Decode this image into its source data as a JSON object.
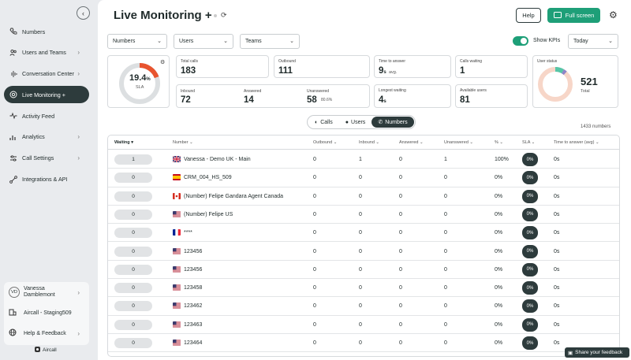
{
  "sidebar": {
    "items": [
      {
        "label": "Numbers",
        "icon": "phone-icon",
        "chevron": false,
        "active": false
      },
      {
        "label": "Users and Teams",
        "icon": "users-icon",
        "chevron": true,
        "active": false
      },
      {
        "label": "Conversation Center",
        "icon": "waveform-icon",
        "chevron": true,
        "active": false
      },
      {
        "label": "Live Monitoring +",
        "icon": "live-icon",
        "chevron": false,
        "active": true
      },
      {
        "label": "Activity Feed",
        "icon": "activity-icon",
        "chevron": false,
        "active": false
      },
      {
        "label": "Analytics",
        "icon": "chart-icon",
        "chevron": true,
        "active": false
      },
      {
        "label": "Call Settings",
        "icon": "sliders-icon",
        "chevron": true,
        "active": false
      },
      {
        "label": "Integrations & API",
        "icon": "integrations-icon",
        "chevron": false,
        "active": false
      }
    ],
    "user": {
      "initials": "VD",
      "name_line1": "Vanessa",
      "name_line2": "Damblemont"
    },
    "company": "Aircall - Staging509",
    "help": "Help & Feedback",
    "footer": "Aircall"
  },
  "header": {
    "title": "Live Monitoring +",
    "help_label": "Help",
    "fullscreen_label": "Full screen"
  },
  "filters": {
    "numbers": "Numbers",
    "users": "Users",
    "teams": "Teams",
    "show_kpis": "Show KPIs",
    "period": "Today"
  },
  "kpis": {
    "sla": {
      "value": "19.4",
      "unit": "%",
      "label": "SLA",
      "fraction": 0.194
    },
    "total_calls": {
      "label": "Total calls",
      "value": "183"
    },
    "outbound": {
      "label": "Outbound",
      "value": "111"
    },
    "time_to_answer": {
      "label": "Time to answer",
      "value": "9",
      "unit": "s",
      "suffix": "avg."
    },
    "calls_waiting": {
      "label": "Calls waiting",
      "value": "1"
    },
    "inbound": {
      "label": "Inbound",
      "value": "72"
    },
    "answered": {
      "label": "Answered",
      "value": "14"
    },
    "unanswered": {
      "label": "Unanswered",
      "value": "58",
      "pct": "80.6%"
    },
    "longest_waiting": {
      "label": "Longest waiting",
      "value": "4",
      "unit": "s"
    },
    "available_users": {
      "label": "Available users",
      "value": "81"
    },
    "user_status": {
      "label": "User status",
      "total": "521",
      "total_label": "Total"
    }
  },
  "tabs": [
    "Calls",
    "Users",
    "Numbers"
  ],
  "count_label": "1433 numbers",
  "table": {
    "headers": [
      "Waiting",
      "Number",
      "Outbound",
      "Inbound",
      "Answered",
      "Unanswered",
      "%",
      "SLA",
      "Time to answer (avg)"
    ],
    "rows": [
      {
        "waiting": "1",
        "flag": "uk",
        "number": "Vanessa - Demo UK - Main",
        "outbound": "0",
        "inbound": "1",
        "answered": "0",
        "unanswered": "1",
        "pct": "100%",
        "sla": "0%",
        "tta": "0s"
      },
      {
        "waiting": "0",
        "flag": "es",
        "number": "CRM_004_HS_509",
        "outbound": "0",
        "inbound": "0",
        "answered": "0",
        "unanswered": "0",
        "pct": "0%",
        "sla": "0%",
        "tta": "0s"
      },
      {
        "waiting": "0",
        "flag": "ca",
        "number": "(Number) Felipe Gandara Agent Canada",
        "outbound": "0",
        "inbound": "0",
        "answered": "0",
        "unanswered": "0",
        "pct": "0%",
        "sla": "0%",
        "tta": "0s"
      },
      {
        "waiting": "0",
        "flag": "us",
        "number": "(Number) Felipe US",
        "outbound": "0",
        "inbound": "0",
        "answered": "0",
        "unanswered": "0",
        "pct": "0%",
        "sla": "0%",
        "tta": "0s"
      },
      {
        "waiting": "0",
        "flag": "fr",
        "number": "****",
        "outbound": "0",
        "inbound": "0",
        "answered": "0",
        "unanswered": "0",
        "pct": "0%",
        "sla": "0%",
        "tta": "0s"
      },
      {
        "waiting": "0",
        "flag": "us",
        "number": "123456",
        "outbound": "0",
        "inbound": "0",
        "answered": "0",
        "unanswered": "0",
        "pct": "0%",
        "sla": "0%",
        "tta": "0s"
      },
      {
        "waiting": "0",
        "flag": "us",
        "number": "123456",
        "outbound": "0",
        "inbound": "0",
        "answered": "0",
        "unanswered": "0",
        "pct": "0%",
        "sla": "0%",
        "tta": "0s"
      },
      {
        "waiting": "0",
        "flag": "us",
        "number": "123458",
        "outbound": "0",
        "inbound": "0",
        "answered": "0",
        "unanswered": "0",
        "pct": "0%",
        "sla": "0%",
        "tta": "0s"
      },
      {
        "waiting": "0",
        "flag": "us",
        "number": "123462",
        "outbound": "0",
        "inbound": "0",
        "answered": "0",
        "unanswered": "0",
        "pct": "0%",
        "sla": "0%",
        "tta": "0s"
      },
      {
        "waiting": "0",
        "flag": "us",
        "number": "123463",
        "outbound": "0",
        "inbound": "0",
        "answered": "0",
        "unanswered": "0",
        "pct": "0%",
        "sla": "0%",
        "tta": "0s"
      },
      {
        "waiting": "0",
        "flag": "us",
        "number": "123464",
        "outbound": "0",
        "inbound": "0",
        "answered": "0",
        "unanswered": "0",
        "pct": "0%",
        "sla": "0%",
        "tta": "0s"
      }
    ]
  },
  "feedback_label": "Share your feedback",
  "colors": {
    "accent": "#1e9f78",
    "dark": "#2d3b3c",
    "sla_arc": "#e8542f"
  }
}
